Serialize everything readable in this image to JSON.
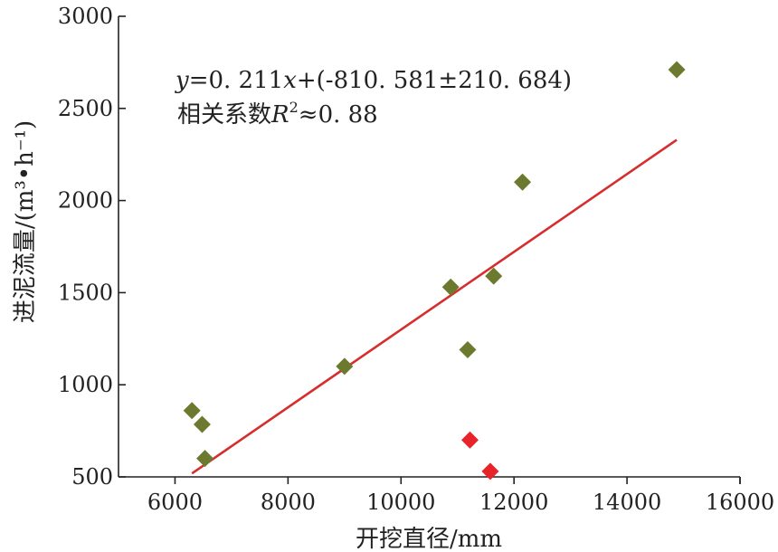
{
  "chart_data": {
    "type": "scatter",
    "title": "",
    "xlabel": "开挖直径/mm",
    "ylabel": "进泥流量/(m³•h⁻¹)",
    "xlim": [
      5000,
      16000
    ],
    "ylim": [
      500,
      3000
    ],
    "x_ticks": [
      6000,
      8000,
      10000,
      12000,
      14000,
      16000
    ],
    "y_ticks": [
      500,
      1000,
      1500,
      2000,
      2500,
      3000
    ],
    "x_tick_labels": [
      "6000",
      "8000",
      "10000",
      "12000",
      "14000",
      "16000"
    ],
    "y_tick_labels": [
      "500",
      "1000",
      "1500",
      "2000",
      "2500",
      "3000"
    ],
    "grid": false,
    "series": [
      {
        "marker": "diamond",
        "color": "#6b7a2e",
        "points": [
          {
            "x": 6300,
            "y": 860
          },
          {
            "x": 6480,
            "y": 785
          },
          {
            "x": 6530,
            "y": 600
          },
          {
            "x": 9000,
            "y": 1100
          },
          {
            "x": 10880,
            "y": 1530
          },
          {
            "x": 11180,
            "y": 1190
          },
          {
            "x": 11640,
            "y": 1590
          },
          {
            "x": 12150,
            "y": 2100
          },
          {
            "x": 14880,
            "y": 2710
          }
        ]
      },
      {
        "marker": "diamond",
        "color": "#e8232a",
        "points": [
          {
            "x": 11220,
            "y": 700
          },
          {
            "x": 11580,
            "y": 530
          }
        ]
      }
    ],
    "fit_line": {
      "color": "#d62d2d",
      "slope": 0.211,
      "intercept": -810.581,
      "x_range": [
        6300,
        14880
      ]
    },
    "annotation": {
      "equation": {
        "y": "y",
        "middle": "=0. 211",
        "x": "x",
        "rest": "+(-810. 581±210. 684)"
      },
      "r2": {
        "prefix": "相关系数",
        "r": "R",
        "sup": "2",
        "value": "≈0. 88"
      }
    }
  }
}
